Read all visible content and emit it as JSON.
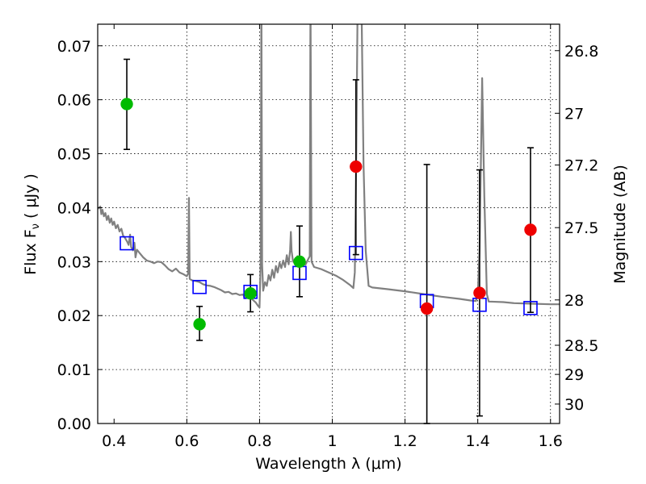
{
  "chart_data": {
    "type": "scatter",
    "xlabel": "Wavelength  λ (μm)",
    "ylabel": "Flux  F_ν  ( μJy )",
    "ylabel_right": "Magnitude (AB)",
    "xlim": [
      0.355,
      1.625
    ],
    "ylim": [
      0.0,
      0.074
    ],
    "grid": true,
    "x_ticks": [
      0.4,
      0.6,
      0.8,
      1.0,
      1.2,
      1.4,
      1.6
    ],
    "x_tick_labels": [
      "0.4",
      "0.6",
      "0.8",
      "1",
      "1.2",
      "1.4",
      "1.6"
    ],
    "y_ticks": [
      0.0,
      0.01,
      0.02,
      0.03,
      0.04,
      0.05,
      0.06,
      0.07
    ],
    "y_tick_labels": [
      "0.00",
      "0.01",
      "0.02",
      "0.03",
      "0.04",
      "0.05",
      "0.06",
      "0.07"
    ],
    "right_ticks": [
      {
        "flux": 0.0691,
        "label": "26.8"
      },
      {
        "flux": 0.0575,
        "label": "27"
      },
      {
        "flux": 0.0479,
        "label": "27.2"
      },
      {
        "flux": 0.0363,
        "label": "27.5"
      },
      {
        "flux": 0.0229,
        "label": "28"
      },
      {
        "flux": 0.0145,
        "label": "28.5"
      },
      {
        "flux": 0.0091,
        "label": "29"
      },
      {
        "flux": 0.0036,
        "label": "30"
      }
    ],
    "series": [
      {
        "marker": "circle",
        "color": "#00bb00",
        "points": [
          {
            "x": 0.435,
            "y": 0.0592,
            "err_lo": 0.0508,
            "err_hi": 0.0675
          },
          {
            "x": 0.635,
            "y": 0.0184,
            "err_lo": 0.0154,
            "err_hi": 0.0217
          },
          {
            "x": 0.775,
            "y": 0.0241,
            "err_lo": 0.0207,
            "err_hi": 0.0276
          },
          {
            "x": 0.91,
            "y": 0.03,
            "err_lo": 0.0235,
            "err_hi": 0.0366
          }
        ]
      },
      {
        "marker": "circle",
        "color": "#ee0000",
        "points": [
          {
            "x": 1.065,
            "y": 0.0476,
            "err_lo": 0.0313,
            "err_hi": 0.0637
          },
          {
            "x": 1.26,
            "y": 0.0213,
            "err_lo": 0.0,
            "err_hi": 0.048
          },
          {
            "x": 1.405,
            "y": 0.0242,
            "err_lo": 0.0014,
            "err_hi": 0.047
          },
          {
            "x": 1.545,
            "y": 0.0359,
            "err_lo": 0.0206,
            "err_hi": 0.0511
          }
        ]
      },
      {
        "marker": "square-open",
        "color": "#0000ff",
        "points": [
          {
            "x": 0.435,
            "y": 0.0334
          },
          {
            "x": 0.635,
            "y": 0.0253
          },
          {
            "x": 0.775,
            "y": 0.0244
          },
          {
            "x": 0.91,
            "y": 0.0279
          },
          {
            "x": 1.065,
            "y": 0.0316
          },
          {
            "x": 1.26,
            "y": 0.0227
          },
          {
            "x": 1.405,
            "y": 0.022
          },
          {
            "x": 1.545,
            "y": 0.0214
          }
        ]
      },
      {
        "type": "line",
        "color": "#808080",
        "points": [
          [
            0.355,
            0.0398
          ],
          [
            0.362,
            0.0402
          ],
          [
            0.365,
            0.0388
          ],
          [
            0.368,
            0.0396
          ],
          [
            0.372,
            0.0384
          ],
          [
            0.376,
            0.039
          ],
          [
            0.38,
            0.0377
          ],
          [
            0.384,
            0.0385
          ],
          [
            0.388,
            0.0372
          ],
          [
            0.392,
            0.038
          ],
          [
            0.396,
            0.0368
          ],
          [
            0.4,
            0.0374
          ],
          [
            0.405,
            0.0362
          ],
          [
            0.41,
            0.0368
          ],
          [
            0.415,
            0.0356
          ],
          [
            0.42,
            0.0361
          ],
          [
            0.425,
            0.0348
          ],
          [
            0.43,
            0.0344
          ],
          [
            0.436,
            0.0337
          ],
          [
            0.44,
            0.0331
          ],
          [
            0.444,
            0.035
          ],
          [
            0.447,
            0.0327
          ],
          [
            0.452,
            0.0321
          ],
          [
            0.456,
            0.0335
          ],
          [
            0.459,
            0.0308
          ],
          [
            0.463,
            0.0322
          ],
          [
            0.47,
            0.0316
          ],
          [
            0.48,
            0.0308
          ],
          [
            0.49,
            0.0302
          ],
          [
            0.5,
            0.03
          ],
          [
            0.51,
            0.0297
          ],
          [
            0.52,
            0.03
          ],
          [
            0.53,
            0.0299
          ],
          [
            0.54,
            0.0293
          ],
          [
            0.55,
            0.0286
          ],
          [
            0.56,
            0.0282
          ],
          [
            0.57,
            0.0287
          ],
          [
            0.58,
            0.028
          ],
          [
            0.59,
            0.0277
          ],
          [
            0.6,
            0.0273
          ],
          [
            0.604,
            0.0278
          ],
          [
            0.606,
            0.0418
          ],
          [
            0.608,
            0.0268
          ],
          [
            0.615,
            0.0265
          ],
          [
            0.625,
            0.0264
          ],
          [
            0.635,
            0.0262
          ],
          [
            0.645,
            0.0258
          ],
          [
            0.655,
            0.0256
          ],
          [
            0.665,
            0.0255
          ],
          [
            0.675,
            0.0253
          ],
          [
            0.685,
            0.025
          ],
          [
            0.695,
            0.0247
          ],
          [
            0.705,
            0.0243
          ],
          [
            0.715,
            0.0244
          ],
          [
            0.725,
            0.024
          ],
          [
            0.735,
            0.0241
          ],
          [
            0.745,
            0.0238
          ],
          [
            0.755,
            0.0239
          ],
          [
            0.76,
            0.0232
          ],
          [
            0.77,
            0.0236
          ],
          [
            0.78,
            0.023
          ],
          [
            0.79,
            0.0224
          ],
          [
            0.796,
            0.0218
          ],
          [
            0.8,
            0.0215
          ],
          [
            0.803,
            0.03
          ],
          [
            0.805,
            0.08
          ],
          [
            0.807,
            0.0295
          ],
          [
            0.81,
            0.0246
          ],
          [
            0.815,
            0.0262
          ],
          [
            0.82,
            0.0255
          ],
          [
            0.825,
            0.0275
          ],
          [
            0.83,
            0.0265
          ],
          [
            0.835,
            0.0285
          ],
          [
            0.84,
            0.027
          ],
          [
            0.845,
            0.0292
          ],
          [
            0.85,
            0.028
          ],
          [
            0.855,
            0.0298
          ],
          [
            0.86,
            0.0288
          ],
          [
            0.865,
            0.0302
          ],
          [
            0.87,
            0.029
          ],
          [
            0.875,
            0.0312
          ],
          [
            0.88,
            0.0295
          ],
          [
            0.884,
            0.0322
          ],
          [
            0.886,
            0.0355
          ],
          [
            0.888,
            0.032
          ],
          [
            0.892,
            0.03
          ],
          [
            0.898,
            0.0297
          ],
          [
            0.904,
            0.031
          ],
          [
            0.91,
            0.0296
          ],
          [
            0.918,
            0.0305
          ],
          [
            0.926,
            0.0294
          ],
          [
            0.934,
            0.0305
          ],
          [
            0.938,
            0.031
          ],
          [
            0.94,
            0.08
          ],
          [
            0.943,
            0.03
          ],
          [
            0.95,
            0.029
          ],
          [
            0.97,
            0.0286
          ],
          [
            0.99,
            0.028
          ],
          [
            1.01,
            0.0274
          ],
          [
            1.03,
            0.0266
          ],
          [
            1.05,
            0.0256
          ],
          [
            1.058,
            0.0251
          ],
          [
            1.062,
            0.028
          ],
          [
            1.066,
            0.05
          ],
          [
            1.07,
            0.08
          ],
          [
            1.08,
            0.08
          ],
          [
            1.086,
            0.048
          ],
          [
            1.092,
            0.032
          ],
          [
            1.1,
            0.0255
          ],
          [
            1.11,
            0.0252
          ],
          [
            1.15,
            0.0249
          ],
          [
            1.2,
            0.0245
          ],
          [
            1.25,
            0.024
          ],
          [
            1.3,
            0.0235
          ],
          [
            1.35,
            0.0231
          ],
          [
            1.38,
            0.0228
          ],
          [
            1.395,
            0.0227
          ],
          [
            1.4,
            0.024
          ],
          [
            1.405,
            0.032
          ],
          [
            1.412,
            0.064
          ],
          [
            1.418,
            0.042
          ],
          [
            1.425,
            0.024
          ],
          [
            1.43,
            0.0226
          ],
          [
            1.47,
            0.0225
          ],
          [
            1.5,
            0.0223
          ],
          [
            1.55,
            0.0222
          ],
          [
            1.6,
            0.0221
          ],
          [
            1.625,
            0.0221
          ]
        ]
      }
    ]
  }
}
